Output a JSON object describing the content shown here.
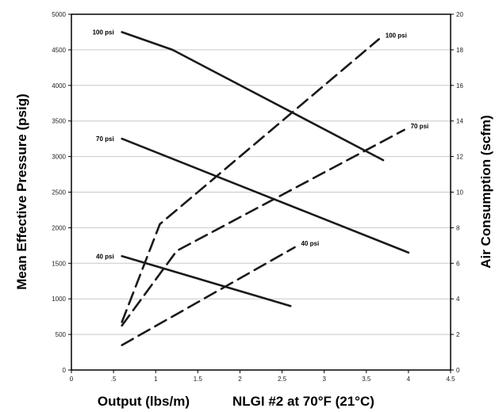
{
  "chart_data": {
    "type": "line",
    "xlabel": "Output (lbs/m)",
    "note": "NLGI #2 at 70°F (21°C)",
    "ylabel_left": "Mean Effective Pressure (psig)",
    "ylabel_right": "Air Consumption (scfm)",
    "xlim": [
      0,
      4.5
    ],
    "ylim_left": [
      0,
      5000
    ],
    "ylim_right": [
      0,
      20
    ],
    "x_ticks": [
      "0",
      ".5",
      "1",
      "1.5",
      "2",
      "2.5",
      "3",
      "3.5",
      "4",
      "4.5"
    ],
    "y_left_ticks": [
      "0",
      "500",
      "1000",
      "1500",
      "2000",
      "2500",
      "3000",
      "3500",
      "4000",
      "4500",
      "5000"
    ],
    "y_right_ticks": [
      "0",
      "2",
      "4",
      "6",
      "8",
      "10",
      "12",
      "14",
      "16",
      "18",
      "20"
    ],
    "grid": true,
    "series": [
      {
        "name": "100 psi",
        "axis": "left",
        "style": "solid",
        "x": [
          0.6,
          1.2,
          3.7
        ],
        "y": [
          4750,
          4500,
          2950
        ]
      },
      {
        "name": "70 psi",
        "axis": "left",
        "style": "solid",
        "x": [
          0.6,
          4.0
        ],
        "y": [
          3250,
          1650
        ]
      },
      {
        "name": "40 psi",
        "axis": "left",
        "style": "solid",
        "x": [
          0.6,
          2.6
        ],
        "y": [
          1600,
          900
        ]
      },
      {
        "name": "100 psi",
        "axis": "right",
        "style": "dashed",
        "x": [
          0.6,
          1.05,
          3.65
        ],
        "y": [
          2.7,
          8.2,
          18.6
        ]
      },
      {
        "name": "70 psi",
        "axis": "right",
        "style": "dashed",
        "x": [
          0.6,
          1.25,
          3.95
        ],
        "y": [
          2.5,
          6.7,
          13.5
        ]
      },
      {
        "name": "40 psi",
        "axis": "right",
        "style": "dashed",
        "x": [
          0.6,
          2.65
        ],
        "y": [
          1.4,
          6.9
        ]
      }
    ]
  }
}
